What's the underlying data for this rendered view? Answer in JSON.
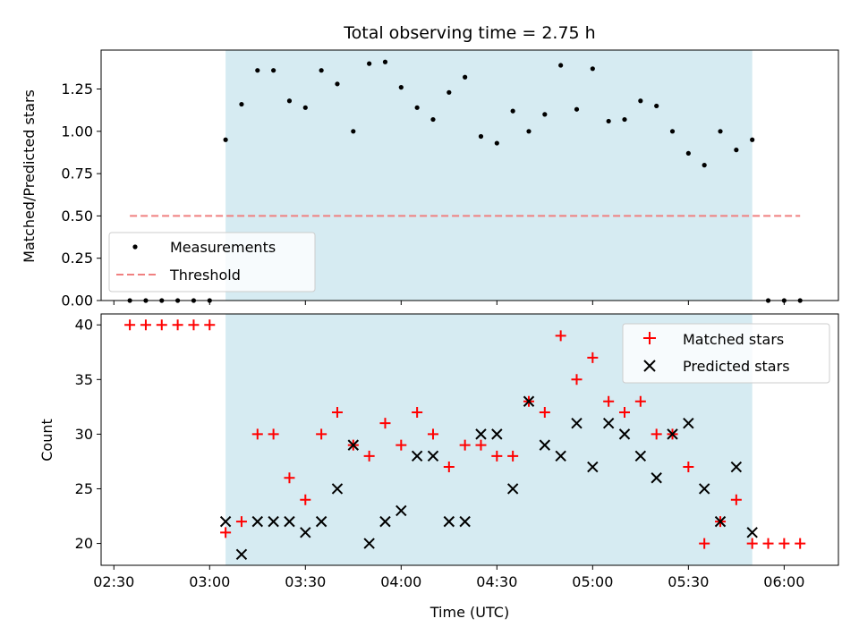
{
  "chart_data": [
    {
      "type": "scatter",
      "title": "Total observing time = 2.75 h",
      "ylabel": "Matched/Predicted stars",
      "xlabel": "",
      "ylim": [
        0,
        1.48
      ],
      "yticks": [
        "0.00",
        "0.25",
        "0.50",
        "0.75",
        "1.00",
        "1.25"
      ],
      "shaded_region": {
        "from": "03:05",
        "to": "05:50",
        "color": "#add8e6"
      },
      "legend": {
        "placement": "lower-left",
        "entries": [
          "Measurements",
          "Threshold"
        ]
      },
      "series": [
        {
          "name": "Measurements",
          "marker": "dot",
          "color": "#000000",
          "x": [
            "02:35",
            "02:40",
            "02:45",
            "02:50",
            "02:55",
            "03:00",
            "03:05",
            "03:10",
            "03:15",
            "03:20",
            "03:25",
            "03:30",
            "03:35",
            "03:40",
            "03:45",
            "03:50",
            "03:55",
            "04:00",
            "04:05",
            "04:10",
            "04:15",
            "04:20",
            "04:25",
            "04:30",
            "04:35",
            "04:40",
            "04:45",
            "04:50",
            "04:55",
            "05:00",
            "05:05",
            "05:10",
            "05:15",
            "05:20",
            "05:25",
            "05:30",
            "05:35",
            "05:40",
            "05:45",
            "05:50",
            "05:55",
            "06:00",
            "06:05"
          ],
          "y": [
            0,
            0,
            0,
            0,
            0,
            0,
            0.95,
            1.16,
            1.36,
            1.36,
            1.18,
            1.14,
            1.36,
            1.28,
            1.0,
            1.4,
            1.41,
            1.26,
            1.14,
            1.07,
            1.23,
            1.32,
            0.97,
            0.93,
            1.12,
            1.0,
            1.1,
            1.39,
            1.13,
            1.37,
            1.06,
            1.07,
            1.18,
            1.15,
            1.0,
            0.87,
            0.8,
            1.0,
            0.89,
            0.95,
            0,
            0,
            0
          ]
        },
        {
          "name": "Threshold",
          "line_style": "dashed",
          "color": "#f08080",
          "x": [
            "02:35",
            "06:05"
          ],
          "y": [
            0.5,
            0.5
          ]
        }
      ]
    },
    {
      "type": "scatter",
      "title": "",
      "ylabel": "Count",
      "xlabel": "Time (UTC)",
      "ylim": [
        18,
        41
      ],
      "yticks": [
        "20",
        "25",
        "30",
        "35",
        "40"
      ],
      "xticks": [
        "02:30",
        "03:00",
        "03:30",
        "04:00",
        "04:30",
        "05:00",
        "05:30",
        "06:00"
      ],
      "xlim": [
        "02:26",
        "06:17"
      ],
      "shaded_region": {
        "from": "03:05",
        "to": "05:50",
        "color": "#add8e6"
      },
      "legend": {
        "placement": "top-right",
        "entries": [
          "Matched stars",
          "Predicted stars"
        ]
      },
      "series": [
        {
          "name": "Matched stars",
          "marker": "plus",
          "color": "#ff0000",
          "x": [
            "02:35",
            "02:40",
            "02:45",
            "02:50",
            "02:55",
            "03:00",
            "03:05",
            "03:10",
            "03:15",
            "03:20",
            "03:25",
            "03:30",
            "03:35",
            "03:40",
            "03:45",
            "03:50",
            "03:55",
            "04:00",
            "04:05",
            "04:10",
            "04:15",
            "04:20",
            "04:25",
            "04:30",
            "04:35",
            "04:40",
            "04:45",
            "04:50",
            "04:55",
            "05:00",
            "05:05",
            "05:10",
            "05:15",
            "05:20",
            "05:25",
            "05:30",
            "05:35",
            "05:40",
            "05:45",
            "05:50",
            "05:55",
            "06:00",
            "06:05"
          ],
          "y": [
            40,
            40,
            40,
            40,
            40,
            40,
            21,
            22,
            30,
            30,
            26,
            24,
            30,
            32,
            29,
            28,
            31,
            29,
            32,
            30,
            27,
            29,
            29,
            28,
            28,
            33,
            32,
            39,
            35,
            37,
            33,
            32,
            33,
            30,
            30,
            27,
            20,
            22,
            24,
            20,
            20,
            20,
            20
          ]
        },
        {
          "name": "Predicted stars",
          "marker": "x",
          "color": "#000000",
          "x": [
            "03:05",
            "03:10",
            "03:15",
            "03:20",
            "03:25",
            "03:30",
            "03:35",
            "03:40",
            "03:45",
            "03:50",
            "03:55",
            "04:00",
            "04:05",
            "04:10",
            "04:15",
            "04:20",
            "04:25",
            "04:30",
            "04:35",
            "04:40",
            "04:45",
            "04:50",
            "04:55",
            "05:00",
            "05:05",
            "05:10",
            "05:15",
            "05:20",
            "05:25",
            "05:30",
            "05:35",
            "05:40",
            "05:45",
            "05:50"
          ],
          "y": [
            22,
            19,
            22,
            22,
            22,
            21,
            22,
            25,
            29,
            20,
            22,
            23,
            28,
            28,
            22,
            22,
            30,
            30,
            25,
            33,
            29,
            28,
            31,
            27,
            31,
            30,
            28,
            26,
            30,
            31,
            25,
            22,
            27,
            21
          ]
        }
      ]
    }
  ]
}
